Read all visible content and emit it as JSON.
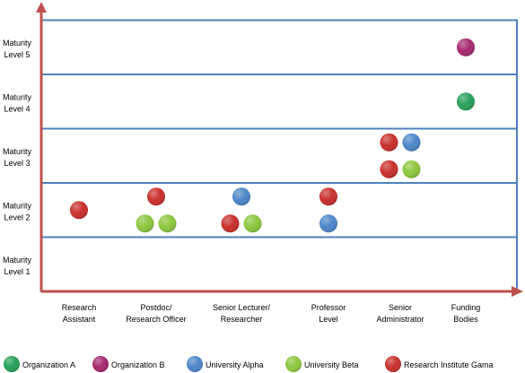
{
  "chart_data": {
    "type": "scatter",
    "y_categories": [
      [
        "Maturity",
        "Level 1"
      ],
      [
        "Maturity",
        "Level 2"
      ],
      [
        "Maturity",
        "Level 3"
      ],
      [
        "Maturity",
        "Level 4"
      ],
      [
        "Maturity",
        "Level 5"
      ]
    ],
    "x_categories": [
      [
        "Research",
        "Assistant"
      ],
      [
        "Postdoc/",
        "Research Officer"
      ],
      [
        "Senior Lecturer/",
        "Researcher"
      ],
      [
        "Professor",
        "Level"
      ],
      [
        "Senior",
        "Administrator"
      ],
      [
        "Funding",
        "Bodies"
      ]
    ],
    "series": [
      {
        "name": "Organization A",
        "color": "#27a05a",
        "points": [
          {
            "x": 5,
            "level": 4,
            "row": 0,
            "col": 0
          }
        ]
      },
      {
        "name": "Organization B",
        "color": "#a52a6f",
        "points": [
          {
            "x": 5,
            "level": 5,
            "row": 0,
            "col": 0
          }
        ]
      },
      {
        "name": "University Alpha",
        "color": "#4d86c8",
        "points": [
          {
            "x": 2,
            "level": 2,
            "row": 1,
            "col": 0
          },
          {
            "x": 3,
            "level": 2,
            "row": -1,
            "col": 0
          },
          {
            "x": 4,
            "level": 3,
            "row": 1,
            "col": 1
          }
        ]
      },
      {
        "name": "University Beta",
        "color": "#8dc63f",
        "points": [
          {
            "x": 1,
            "level": 2,
            "row": -1,
            "col": -1
          },
          {
            "x": 1,
            "level": 2,
            "row": -1,
            "col": 1
          },
          {
            "x": 2,
            "level": 2,
            "row": -1,
            "col": 1
          },
          {
            "x": 4,
            "level": 3,
            "row": -1,
            "col": 1
          }
        ]
      },
      {
        "name": "Research Institute Gama",
        "color": "#c8302c",
        "points": [
          {
            "x": 0,
            "level": 2,
            "row": 0,
            "col": 0
          },
          {
            "x": 1,
            "level": 2,
            "row": 1,
            "col": 0
          },
          {
            "x": 2,
            "level": 2,
            "row": -1,
            "col": -1
          },
          {
            "x": 3,
            "level": 2,
            "row": 1,
            "col": 0
          },
          {
            "x": 4,
            "level": 3,
            "row": 1,
            "col": -1
          },
          {
            "x": 4,
            "level": 3,
            "row": -1,
            "col": -1
          }
        ]
      }
    ],
    "legend_position": "bottom",
    "axis_color": "#c0504d",
    "band_color": "#4f81bd"
  }
}
